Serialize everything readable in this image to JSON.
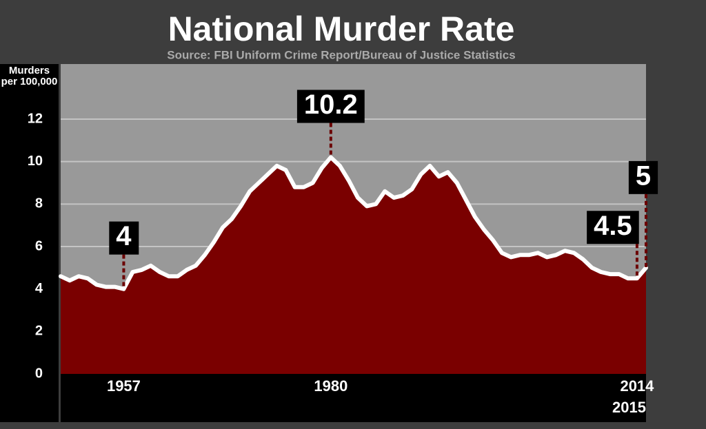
{
  "chart_data": {
    "type": "area",
    "title": "National Murder Rate",
    "subtitle": "Source: FBI Uniform Crime Report/Bureau of Justice Statistics",
    "y_label": "Murders per 100,000",
    "x": [
      1950,
      1951,
      1952,
      1953,
      1954,
      1955,
      1956,
      1957,
      1958,
      1959,
      1960,
      1961,
      1962,
      1963,
      1964,
      1965,
      1966,
      1967,
      1968,
      1969,
      1970,
      1971,
      1972,
      1973,
      1974,
      1975,
      1976,
      1977,
      1978,
      1979,
      1980,
      1981,
      1982,
      1983,
      1984,
      1985,
      1986,
      1987,
      1988,
      1989,
      1990,
      1991,
      1992,
      1993,
      1994,
      1995,
      1996,
      1997,
      1998,
      1999,
      2000,
      2001,
      2002,
      2003,
      2004,
      2005,
      2006,
      2007,
      2008,
      2009,
      2010,
      2011,
      2012,
      2013,
      2014,
      2015
    ],
    "series": [
      {
        "name": "Murders per 100,000",
        "color": "#7a0000",
        "line_color": "#ffffff",
        "values": [
          4.6,
          4.4,
          4.6,
          4.5,
          4.2,
          4.1,
          4.1,
          4.0,
          4.8,
          4.9,
          5.1,
          4.8,
          4.6,
          4.6,
          4.9,
          5.1,
          5.6,
          6.2,
          6.9,
          7.3,
          7.9,
          8.6,
          9.0,
          9.4,
          9.8,
          9.6,
          8.8,
          8.8,
          9.0,
          9.7,
          10.2,
          9.8,
          9.1,
          8.3,
          7.9,
          8.0,
          8.6,
          8.3,
          8.4,
          8.7,
          9.4,
          9.8,
          9.3,
          9.5,
          9.0,
          8.2,
          7.4,
          6.8,
          6.3,
          5.7,
          5.5,
          5.6,
          5.6,
          5.7,
          5.5,
          5.6,
          5.8,
          5.7,
          5.4,
          5.0,
          4.8,
          4.7,
          4.7,
          4.5,
          4.5,
          5
        ]
      }
    ],
    "xlim": [
      1950,
      2015
    ],
    "xticks": [
      1957,
      1980,
      2014,
      2015
    ],
    "ylim": [
      0,
      14
    ],
    "yticks": [
      0,
      2,
      4,
      6,
      8,
      10,
      12
    ],
    "grid": true
  }
}
